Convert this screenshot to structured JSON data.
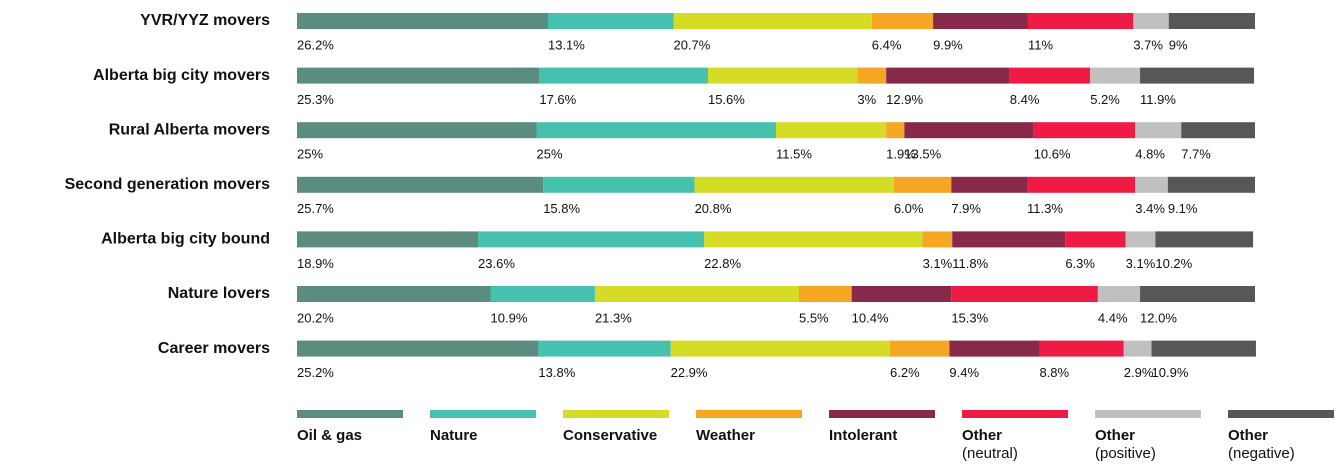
{
  "chart_data": {
    "type": "stacked-bar-horizontal",
    "categories": [
      "YVR/YYZ movers",
      "Alberta big city movers",
      "Rural Alberta movers",
      "Second generation movers",
      "Alberta big city bound",
      "Nature lovers",
      "Career movers"
    ],
    "xlim": [
      0,
      100
    ],
    "series": [
      {
        "name": "Oil & gas",
        "color": "#5b8c80",
        "values": [
          26.2,
          25.3,
          25,
          25.7,
          18.9,
          20.2,
          25.2
        ],
        "value_labels": [
          "26.2%",
          "25.3%",
          "25%",
          "25.7%",
          "18.9%",
          "20.2%",
          "25.2%"
        ]
      },
      {
        "name": "Nature",
        "color": "#46c1ad",
        "values": [
          13.1,
          17.6,
          25,
          15.8,
          23.6,
          10.9,
          13.8
        ],
        "value_labels": [
          "13.1%",
          "17.6%",
          "25%",
          "15.8%",
          "23.6%",
          "10.9%",
          "13.8%"
        ]
      },
      {
        "name": "Conservative",
        "color": "#d4dc26",
        "values": [
          20.7,
          15.6,
          11.5,
          20.8,
          22.8,
          21.3,
          22.9
        ],
        "value_labels": [
          "20.7%",
          "15.6%",
          "11.5%",
          "20.8%",
          "22.8%",
          "21.3%",
          "22.9%"
        ]
      },
      {
        "name": "Weather",
        "color": "#f5a623",
        "values": [
          6.4,
          3,
          1.9,
          6.0,
          3.1,
          5.5,
          6.2
        ],
        "value_labels": [
          "6.4%",
          "3%",
          "1.9%",
          "6.0%",
          "3.1%",
          "5.5%",
          "6.2%"
        ]
      },
      {
        "name": "Intolerant",
        "color": "#86294b",
        "values": [
          9.9,
          12.9,
          13.5,
          7.9,
          11.8,
          10.4,
          9.4
        ],
        "value_labels": [
          "9.9%",
          "12.9%",
          "13.5%",
          "7.9%",
          "11.8%",
          "10.4%",
          "9.4%"
        ]
      },
      {
        "name": "Other (neutral)",
        "color": "#ee1b45",
        "values": [
          11,
          8.4,
          10.6,
          11.3,
          6.3,
          15.3,
          8.8
        ],
        "value_labels": [
          "11%",
          "8.4%",
          "10.6%",
          "11.3%",
          "6.3%",
          "15.3%",
          "8.8%"
        ]
      },
      {
        "name": "Other (positive)",
        "color": "#c0c0c0",
        "values": [
          3.7,
          5.2,
          4.8,
          3.4,
          3.1,
          4.4,
          2.9
        ],
        "value_labels": [
          "3.7%",
          "5.2%",
          "4.8%",
          "3.4%",
          "3.1%",
          "4.4%",
          "2.9%"
        ]
      },
      {
        "name": "Other (negative)",
        "color": "#575757",
        "values": [
          9,
          11.9,
          7.7,
          9.1,
          10.2,
          12.0,
          10.9
        ],
        "value_labels": [
          "9%",
          "11.9%",
          "7.7%",
          "9.1%",
          "10.2%",
          "12.0%",
          "10.9%"
        ]
      }
    ]
  }
}
